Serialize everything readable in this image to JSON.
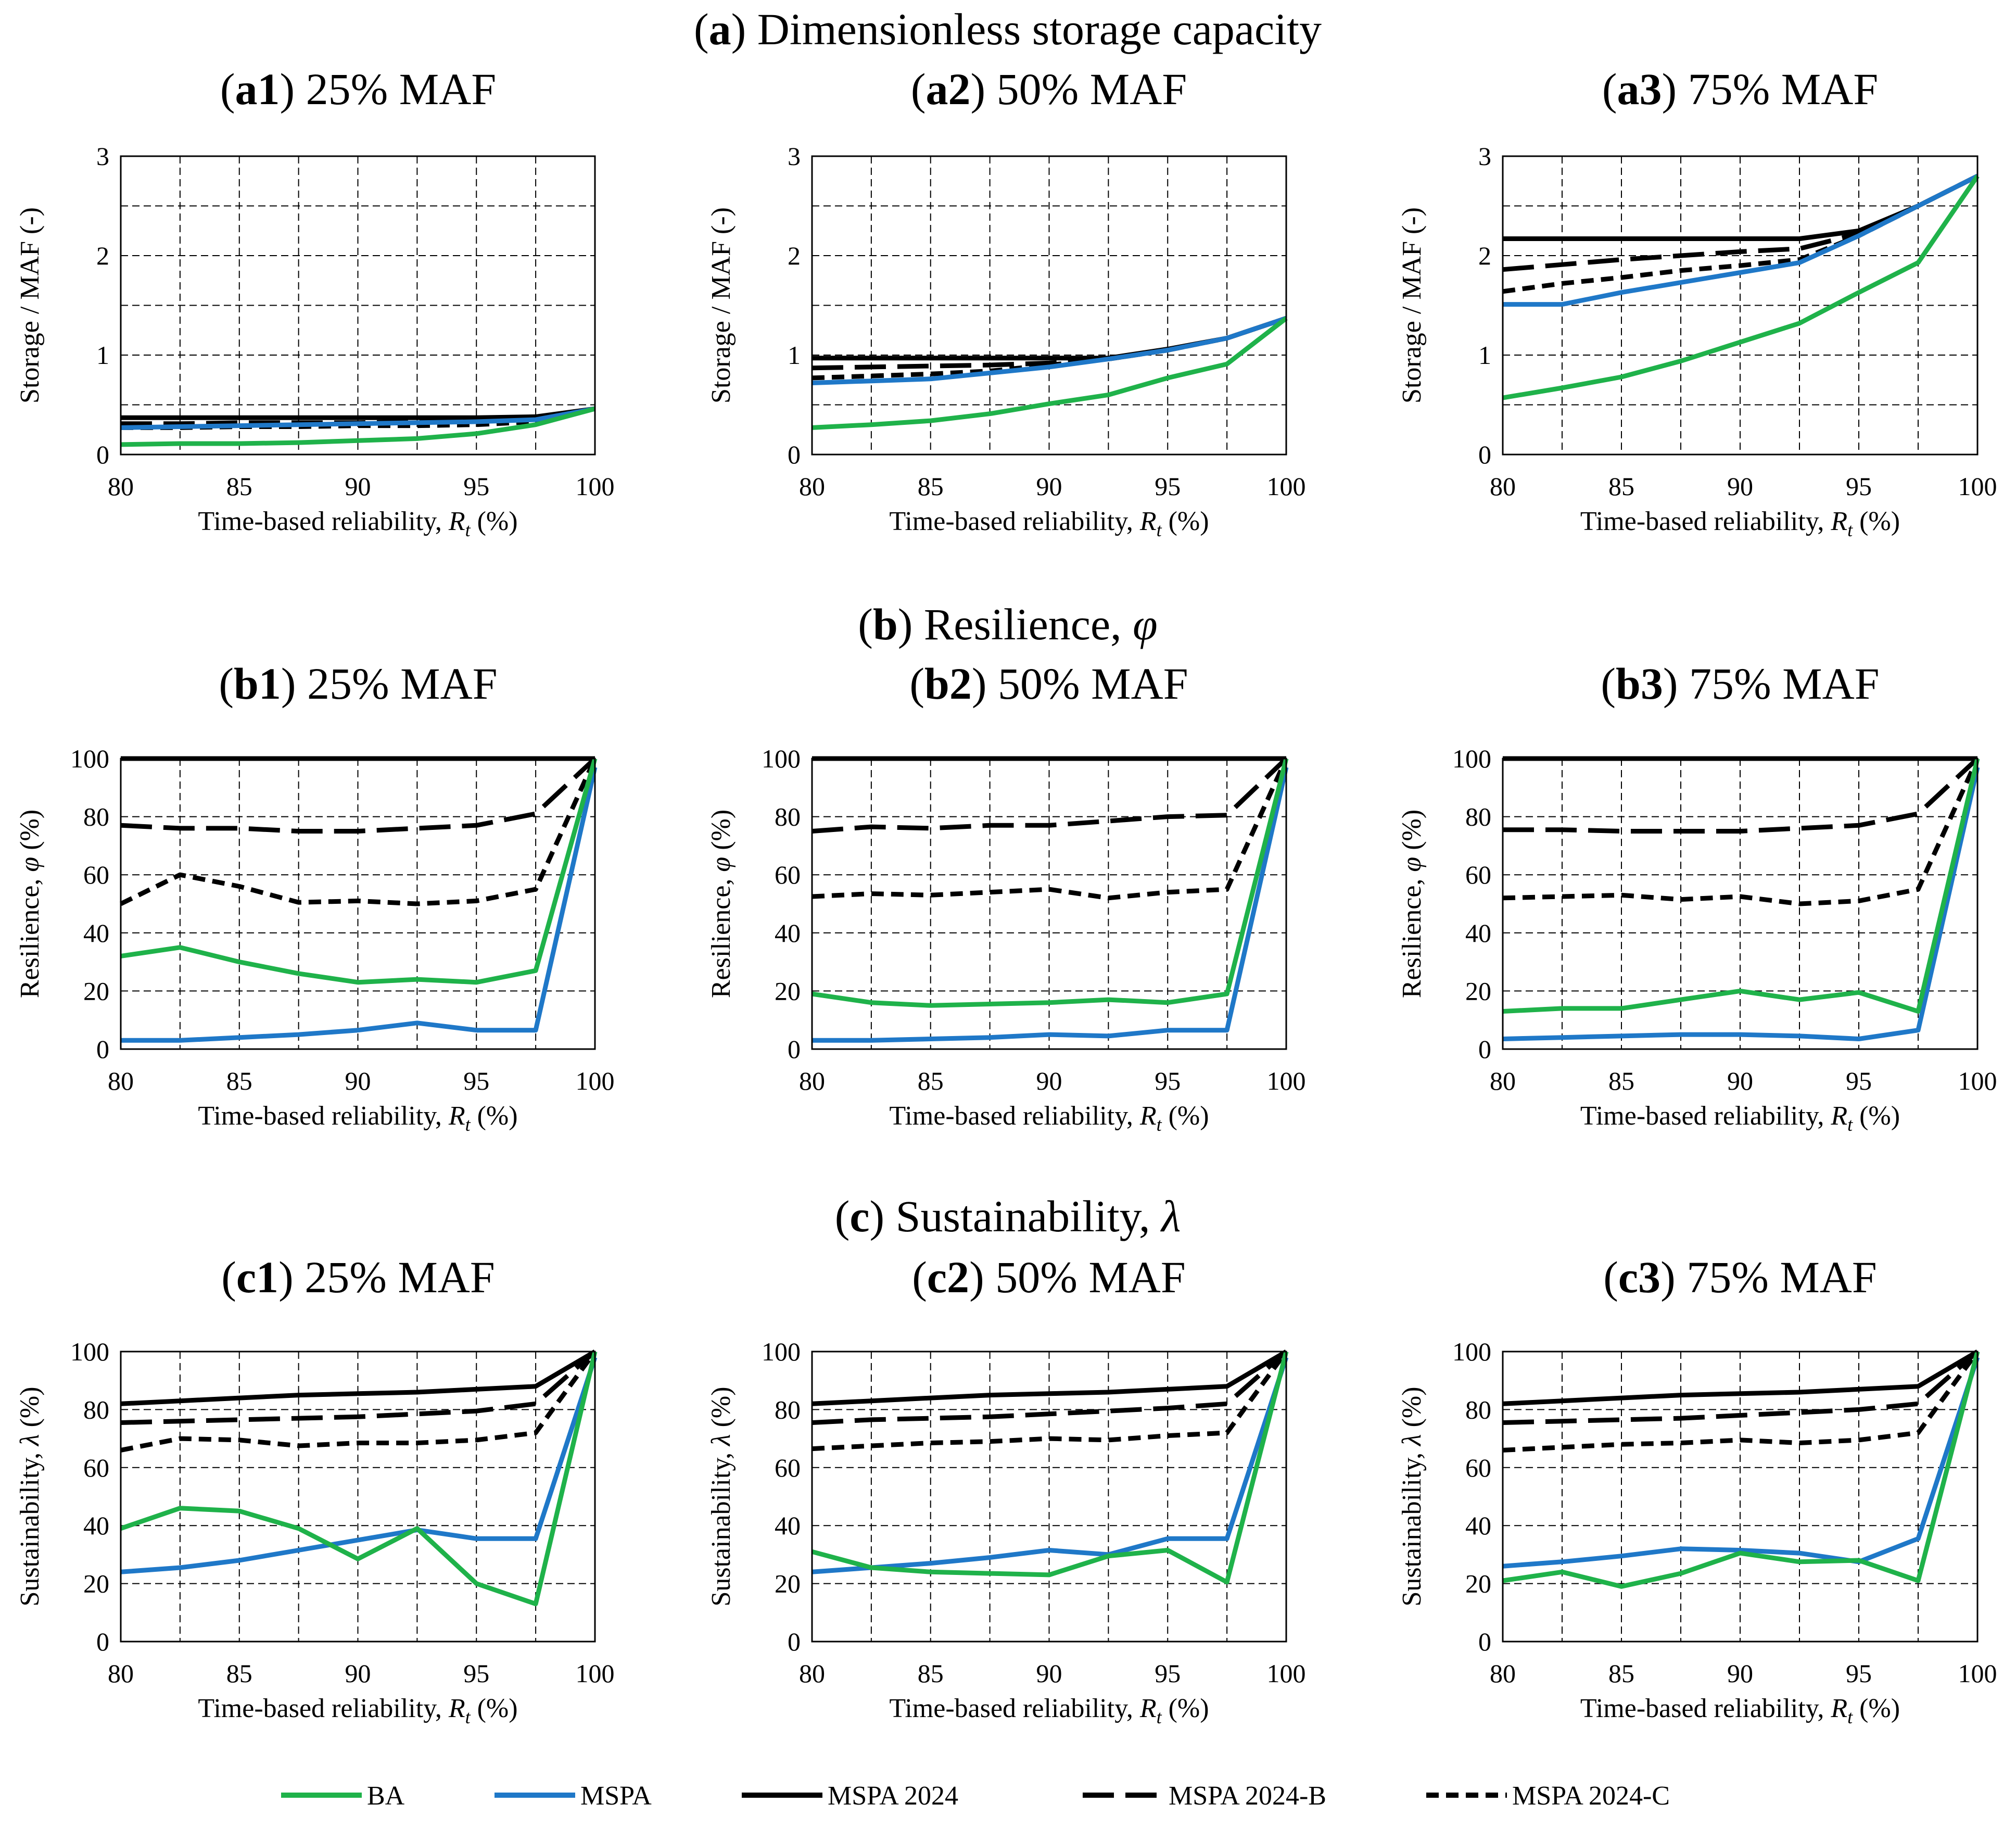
{
  "figure": {
    "legend": [
      {
        "name": "BA",
        "color": "#1fb24a",
        "dash": "solid"
      },
      {
        "name": "MSPA",
        "color": "#1f78c8",
        "dash": "solid"
      },
      {
        "name": "MSPA 2024",
        "color": "#000000",
        "dash": "solid"
      },
      {
        "name": "MSPA 2024-B",
        "color": "#000000",
        "dash": "longdash"
      },
      {
        "name": "MSPA 2024-C",
        "color": "#000000",
        "dash": "shortdash"
      }
    ],
    "sections": [
      {
        "letter": "a",
        "rest": " Dimensionless storage capacity",
        "symbol": ""
      },
      {
        "letter": "b",
        "rest": " Resilience, ",
        "symbol": "φ"
      },
      {
        "letter": "c",
        "rest": " Sustainability, ",
        "symbol": "λ"
      }
    ]
  },
  "chart_data": [
    {
      "id": "a1",
      "type": "line",
      "title_bold": "a1",
      "title_rest": " 25% MAF",
      "ylabel": "Storage / MAF (-)",
      "xlabel_main": "Time-based reliability, ",
      "xlabel_sym": "R",
      "xlabel_sub": "t",
      "xlabel_end": " (%)",
      "xlim": [
        80,
        100
      ],
      "ylim": [
        0,
        3
      ],
      "yticks": [
        0,
        1,
        2,
        3
      ],
      "ygrid": [
        0.5,
        1,
        1.5,
        2,
        2.5
      ],
      "xticks": [
        80,
        85,
        90,
        95,
        100
      ],
      "xgrid": [
        82.5,
        85,
        87.5,
        90,
        92.5,
        95,
        97.5
      ],
      "x": [
        80,
        82.5,
        85,
        87.5,
        90,
        92.5,
        95,
        97.5,
        100
      ],
      "series": [
        {
          "name": "BA",
          "values": [
            0.1,
            0.11,
            0.11,
            0.12,
            0.14,
            0.16,
            0.21,
            0.3,
            0.46
          ]
        },
        {
          "name": "MSPA",
          "values": [
            0.27,
            0.28,
            0.29,
            0.3,
            0.31,
            0.32,
            0.33,
            0.35,
            0.46
          ]
        },
        {
          "name": "MSPA 2024",
          "values": [
            0.37,
            0.37,
            0.37,
            0.37,
            0.37,
            0.37,
            0.37,
            0.38,
            0.46
          ]
        },
        {
          "name": "MSPA 2024-B",
          "values": [
            0.31,
            0.31,
            0.32,
            0.32,
            0.32,
            0.33,
            0.34,
            0.36,
            0.46
          ]
        },
        {
          "name": "MSPA 2024-C",
          "values": [
            0.27,
            0.27,
            0.28,
            0.28,
            0.29,
            0.29,
            0.3,
            0.33,
            0.46
          ]
        }
      ]
    },
    {
      "id": "a2",
      "type": "line",
      "title_bold": "a2",
      "title_rest": " 50% MAF",
      "ylabel": "Storage / MAF (-)",
      "xlabel_main": "Time-based reliability, ",
      "xlabel_sym": "R",
      "xlabel_sub": "t",
      "xlabel_end": " (%)",
      "xlim": [
        80,
        100
      ],
      "ylim": [
        0,
        3
      ],
      "yticks": [
        0,
        1,
        2,
        3
      ],
      "ygrid": [
        0.5,
        1,
        1.5,
        2,
        2.5
      ],
      "xticks": [
        80,
        85,
        90,
        95,
        100
      ],
      "xgrid": [
        82.5,
        85,
        87.5,
        90,
        92.5,
        95,
        97.5
      ],
      "x": [
        80,
        82.5,
        85,
        87.5,
        90,
        92.5,
        95,
        97.5,
        100
      ],
      "series": [
        {
          "name": "BA",
          "values": [
            0.27,
            0.3,
            0.34,
            0.41,
            0.51,
            0.6,
            0.77,
            0.91,
            1.37
          ]
        },
        {
          "name": "MSPA",
          "values": [
            0.72,
            0.74,
            0.76,
            0.82,
            0.88,
            0.96,
            1.05,
            1.17,
            1.37
          ]
        },
        {
          "name": "MSPA 2024",
          "values": [
            0.97,
            0.97,
            0.97,
            0.97,
            0.97,
            0.97,
            1.06,
            1.17,
            1.37
          ]
        },
        {
          "name": "MSPA 2024-B",
          "values": [
            0.87,
            0.88,
            0.89,
            0.9,
            0.92,
            0.96,
            1.05,
            1.17,
            1.37
          ]
        },
        {
          "name": "MSPA 2024-C",
          "values": [
            0.77,
            0.79,
            0.81,
            0.84,
            0.9,
            0.96,
            1.05,
            1.17,
            1.37
          ]
        }
      ]
    },
    {
      "id": "a3",
      "type": "line",
      "title_bold": "a3",
      "title_rest": " 75% MAF",
      "ylabel": "Storage / MAF (-)",
      "xlabel_main": "Time-based reliability, ",
      "xlabel_sym": "R",
      "xlabel_sub": "t",
      "xlabel_end": " (%)",
      "xlim": [
        80,
        100
      ],
      "ylim": [
        0,
        3
      ],
      "yticks": [
        0,
        1,
        2,
        3
      ],
      "ygrid": [
        0.5,
        1,
        1.5,
        2,
        2.5
      ],
      "xticks": [
        80,
        85,
        90,
        95,
        100
      ],
      "xgrid": [
        82.5,
        85,
        87.5,
        90,
        92.5,
        95,
        97.5
      ],
      "x": [
        80,
        82.5,
        85,
        87.5,
        90,
        92.5,
        95,
        97.5,
        100
      ],
      "series": [
        {
          "name": "BA",
          "values": [
            0.57,
            0.67,
            0.78,
            0.94,
            1.13,
            1.32,
            1.63,
            1.93,
            2.8
          ]
        },
        {
          "name": "MSPA",
          "values": [
            1.51,
            1.51,
            1.63,
            1.73,
            1.83,
            1.93,
            2.2,
            2.5,
            2.8
          ]
        },
        {
          "name": "MSPA 2024",
          "values": [
            2.17,
            2.17,
            2.17,
            2.17,
            2.17,
            2.17,
            2.25,
            2.5,
            2.8
          ]
        },
        {
          "name": "MSPA 2024-B",
          "values": [
            1.86,
            1.91,
            1.96,
            2.0,
            2.04,
            2.07,
            2.22,
            2.5,
            2.8
          ]
        },
        {
          "name": "MSPA 2024-C",
          "values": [
            1.64,
            1.72,
            1.78,
            1.85,
            1.9,
            1.96,
            2.2,
            2.5,
            2.8
          ]
        }
      ]
    },
    {
      "id": "b1",
      "type": "line",
      "title_bold": "b1",
      "title_rest": " 25% MAF",
      "ylabel": "Resilience, ",
      "ylabel_sym": "φ",
      "ylabel_end": "  (%)",
      "xlabel_main": "Time-based reliability, ",
      "xlabel_sym": "R",
      "xlabel_sub": "t",
      "xlabel_end": " (%)",
      "xlim": [
        80,
        100
      ],
      "ylim": [
        0,
        100
      ],
      "yticks": [
        0,
        20,
        40,
        60,
        80,
        100
      ],
      "ygrid": [
        20,
        40,
        60,
        80
      ],
      "xticks": [
        80,
        85,
        90,
        95,
        100
      ],
      "xgrid": [
        82.5,
        85,
        87.5,
        90,
        92.5,
        95,
        97.5
      ],
      "x": [
        80,
        82.5,
        85,
        87.5,
        90,
        92.5,
        95,
        97.5,
        100
      ],
      "series": [
        {
          "name": "BA",
          "values": [
            32,
            35,
            30,
            26,
            23,
            24,
            23,
            27,
            100
          ]
        },
        {
          "name": "MSPA",
          "values": [
            3,
            3,
            4,
            5,
            6.5,
            9,
            6.5,
            6.5,
            97
          ]
        },
        {
          "name": "MSPA 2024",
          "values": [
            100,
            100,
            100,
            100,
            100,
            100,
            100,
            100,
            100
          ]
        },
        {
          "name": "MSPA 2024-B",
          "values": [
            77,
            76,
            76,
            75,
            75,
            76,
            77,
            81,
            100
          ]
        },
        {
          "name": "MSPA 2024-C",
          "values": [
            50,
            60,
            56,
            50.5,
            51,
            50,
            51,
            55,
            100
          ]
        }
      ]
    },
    {
      "id": "b2",
      "type": "line",
      "title_bold": "b2",
      "title_rest": " 50% MAF",
      "ylabel": "Resilience, ",
      "ylabel_sym": "φ",
      "ylabel_end": "  (%)",
      "xlabel_main": "Time-based reliability, ",
      "xlabel_sym": "R",
      "xlabel_sub": "t",
      "xlabel_end": " (%)",
      "xlim": [
        80,
        100
      ],
      "ylim": [
        0,
        100
      ],
      "yticks": [
        0,
        20,
        40,
        60,
        80,
        100
      ],
      "ygrid": [
        20,
        40,
        60,
        80
      ],
      "xticks": [
        80,
        85,
        90,
        95,
        100
      ],
      "xgrid": [
        82.5,
        85,
        87.5,
        90,
        92.5,
        95,
        97.5
      ],
      "x": [
        80,
        82.5,
        85,
        87.5,
        90,
        92.5,
        95,
        97.5,
        100
      ],
      "series": [
        {
          "name": "BA",
          "values": [
            19,
            16,
            15,
            15.5,
            16,
            17,
            16,
            19,
            100
          ]
        },
        {
          "name": "MSPA",
          "values": [
            3,
            3,
            3.5,
            4,
            5,
            4.5,
            6.5,
            6.5,
            97
          ]
        },
        {
          "name": "MSPA 2024",
          "values": [
            100,
            100,
            100,
            100,
            100,
            100,
            100,
            100,
            100
          ]
        },
        {
          "name": "MSPA 2024-B",
          "values": [
            75,
            76.5,
            76,
            77,
            77,
            78.5,
            80,
            80.5,
            100
          ]
        },
        {
          "name": "MSPA 2024-C",
          "values": [
            52.5,
            53.5,
            53,
            54,
            55,
            52,
            54,
            55,
            100
          ]
        }
      ]
    },
    {
      "id": "b3",
      "type": "line",
      "title_bold": "b3",
      "title_rest": " 75% MAF",
      "ylabel": "Resilience, ",
      "ylabel_sym": "φ",
      "ylabel_end": "  (%)",
      "xlabel_main": "Time-based reliability, ",
      "xlabel_sym": "R",
      "xlabel_sub": "t",
      "xlabel_end": " (%)",
      "xlim": [
        80,
        100
      ],
      "ylim": [
        0,
        100
      ],
      "yticks": [
        0,
        20,
        40,
        60,
        80,
        100
      ],
      "ygrid": [
        20,
        40,
        60,
        80
      ],
      "xticks": [
        80,
        85,
        90,
        95,
        100
      ],
      "xgrid": [
        82.5,
        85,
        87.5,
        90,
        92.5,
        95,
        97.5
      ],
      "x": [
        80,
        82.5,
        85,
        87.5,
        90,
        92.5,
        95,
        97.5,
        100
      ],
      "series": [
        {
          "name": "BA",
          "values": [
            13,
            14,
            14,
            17,
            20,
            17,
            19.5,
            13,
            100
          ]
        },
        {
          "name": "MSPA",
          "values": [
            3.5,
            4,
            4.5,
            5,
            5,
            4.5,
            3.5,
            6.5,
            97
          ]
        },
        {
          "name": "MSPA 2024",
          "values": [
            100,
            100,
            100,
            100,
            100,
            100,
            100,
            100,
            100
          ]
        },
        {
          "name": "MSPA 2024-B",
          "values": [
            75.5,
            75.5,
            75,
            75,
            75,
            76,
            77,
            81,
            100
          ]
        },
        {
          "name": "MSPA 2024-C",
          "values": [
            52,
            52.5,
            53,
            51.5,
            52.5,
            50,
            51,
            55,
            100
          ]
        }
      ]
    },
    {
      "id": "c1",
      "type": "line",
      "title_bold": "c1",
      "title_rest": " 25% MAF",
      "ylabel": "Sustainability, ",
      "ylabel_sym": "λ",
      "ylabel_end": " (%)",
      "xlabel_main": "Time-based reliability, ",
      "xlabel_sym": "R",
      "xlabel_sub": "t",
      "xlabel_end": " (%)",
      "xlim": [
        80,
        100
      ],
      "ylim": [
        0,
        100
      ],
      "yticks": [
        0,
        20,
        40,
        60,
        80,
        100
      ],
      "ygrid": [
        20,
        40,
        60,
        80
      ],
      "xticks": [
        80,
        85,
        90,
        95,
        100
      ],
      "xgrid": [
        82.5,
        85,
        87.5,
        90,
        92.5,
        95,
        97.5
      ],
      "x": [
        80,
        82.5,
        85,
        87.5,
        90,
        92.5,
        95,
        97.5,
        100
      ],
      "series": [
        {
          "name": "BA",
          "values": [
            39,
            46,
            45,
            39,
            28.5,
            39,
            20,
            13,
            100
          ]
        },
        {
          "name": "MSPA",
          "values": [
            24,
            25.5,
            28,
            31.5,
            35,
            38.5,
            35.5,
            35.5,
            98
          ]
        },
        {
          "name": "MSPA 2024",
          "values": [
            82,
            83,
            84,
            85,
            85.5,
            86,
            87,
            88,
            100
          ]
        },
        {
          "name": "MSPA 2024-B",
          "values": [
            75.5,
            76,
            76.5,
            77,
            77.5,
            78.5,
            79.5,
            82,
            100
          ]
        },
        {
          "name": "MSPA 2024-C",
          "values": [
            66,
            70,
            69.5,
            67.5,
            68.5,
            68.5,
            69.5,
            72,
            100
          ]
        }
      ]
    },
    {
      "id": "c2",
      "type": "line",
      "title_bold": "c2",
      "title_rest": " 50% MAF",
      "ylabel": "Sustainability, ",
      "ylabel_sym": "λ",
      "ylabel_end": " (%)",
      "xlabel_main": "Time-based reliability, ",
      "xlabel_sym": "R",
      "xlabel_sub": "t",
      "xlabel_end": " (%)",
      "xlim": [
        80,
        100
      ],
      "ylim": [
        0,
        100
      ],
      "yticks": [
        0,
        20,
        40,
        60,
        80,
        100
      ],
      "ygrid": [
        20,
        40,
        60,
        80
      ],
      "xticks": [
        80,
        85,
        90,
        95,
        100
      ],
      "xgrid": [
        82.5,
        85,
        87.5,
        90,
        92.5,
        95,
        97.5
      ],
      "x": [
        80,
        82.5,
        85,
        87.5,
        90,
        92.5,
        95,
        97.5,
        100
      ],
      "series": [
        {
          "name": "BA",
          "values": [
            31,
            25.5,
            24,
            23.5,
            23,
            29.5,
            31.5,
            20.5,
            100
          ]
        },
        {
          "name": "MSPA",
          "values": [
            24,
            25.5,
            27,
            29,
            31.5,
            30,
            35.5,
            35.5,
            98
          ]
        },
        {
          "name": "MSPA 2024",
          "values": [
            82,
            83,
            84,
            85,
            85.5,
            86,
            87,
            88,
            100
          ]
        },
        {
          "name": "MSPA 2024-B",
          "values": [
            75.5,
            76.5,
            77,
            77.5,
            78.5,
            79.5,
            80.5,
            82,
            100
          ]
        },
        {
          "name": "MSPA 2024-C",
          "values": [
            66.5,
            67.5,
            68.5,
            69,
            70,
            69.5,
            71,
            72,
            100
          ]
        }
      ]
    },
    {
      "id": "c3",
      "type": "line",
      "title_bold": "c3",
      "title_rest": " 75% MAF",
      "ylabel": "Sustainability, ",
      "ylabel_sym": "λ",
      "ylabel_end": " (%)",
      "xlabel_main": "Time-based reliability, ",
      "xlabel_sym": "R",
      "xlabel_sub": "t",
      "xlabel_end": " (%)",
      "xlim": [
        80,
        100
      ],
      "ylim": [
        0,
        100
      ],
      "yticks": [
        0,
        20,
        40,
        60,
        80,
        100
      ],
      "ygrid": [
        20,
        40,
        60,
        80
      ],
      "xticks": [
        80,
        85,
        90,
        95,
        100
      ],
      "xgrid": [
        82.5,
        85,
        87.5,
        90,
        92.5,
        95,
        97.5
      ],
      "x": [
        80,
        82.5,
        85,
        87.5,
        90,
        92.5,
        95,
        97.5,
        100
      ],
      "series": [
        {
          "name": "BA",
          "values": [
            21,
            24,
            19,
            23.5,
            30.5,
            27.5,
            28,
            21,
            100
          ]
        },
        {
          "name": "MSPA",
          "values": [
            26,
            27.5,
            29.5,
            32,
            31.5,
            30.5,
            27.5,
            35.5,
            98
          ]
        },
        {
          "name": "MSPA 2024",
          "values": [
            82,
            83,
            84,
            85,
            85.5,
            86,
            87,
            88,
            100
          ]
        },
        {
          "name": "MSPA 2024-B",
          "values": [
            75.5,
            76,
            76.5,
            77,
            78,
            79,
            80,
            82,
            100
          ]
        },
        {
          "name": "MSPA 2024-C",
          "values": [
            66,
            67,
            68,
            68.5,
            69.5,
            68.5,
            69.5,
            72,
            100
          ]
        }
      ]
    }
  ]
}
